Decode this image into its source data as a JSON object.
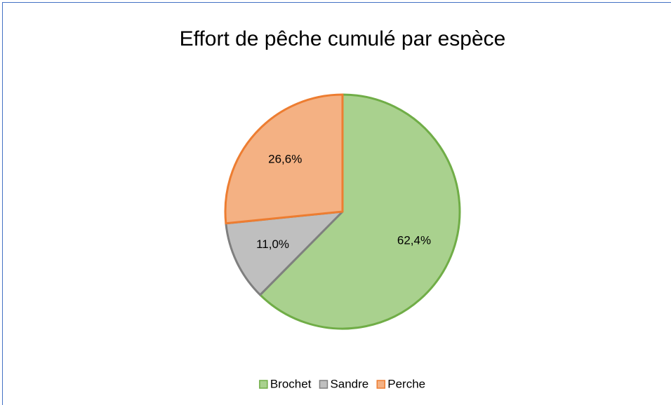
{
  "chart_data": {
    "type": "pie",
    "title": "Effort de pêche cumulé par espèce",
    "categories": [
      "Brochet",
      "Sandre",
      "Perche"
    ],
    "values": [
      62.4,
      11.0,
      26.6
    ],
    "value_labels": [
      "62,4%",
      "11,0%",
      "26,6%"
    ],
    "colors": [
      "#a9d18e",
      "#bfbfbf",
      "#f4b183"
    ],
    "edge_colors": [
      "#70ad47",
      "#7f7f7f",
      "#ed7d31"
    ],
    "legend": "bottom"
  }
}
